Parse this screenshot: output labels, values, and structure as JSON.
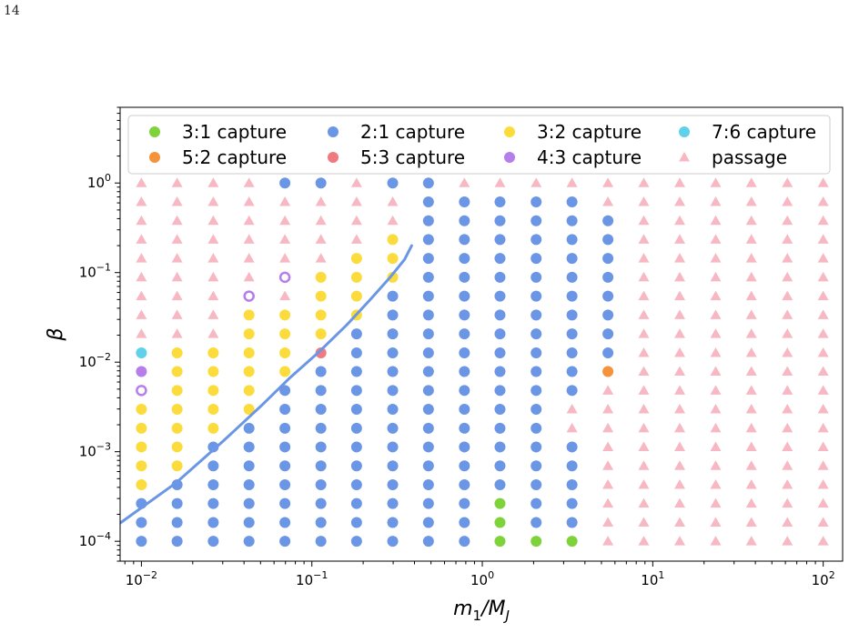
{
  "page_number": "14",
  "chart_data": {
    "type": "scatter",
    "xlabel": "m_1/M_J",
    "ylabel": "β",
    "xscale": "log",
    "yscale": "log",
    "xlim": [
      0.0075,
      130
    ],
    "ylim": [
      6e-05,
      7
    ],
    "xticks": [
      {
        "value": 0.01,
        "base": "10",
        "exp": "−2"
      },
      {
        "value": 0.1,
        "base": "10",
        "exp": "−1"
      },
      {
        "value": 1,
        "base": "10",
        "exp": "0"
      },
      {
        "value": 10,
        "base": "10",
        "exp": "1"
      },
      {
        "value": 100,
        "base": "10",
        "exp": "2"
      }
    ],
    "yticks": [
      {
        "value": 0.0001,
        "base": "10",
        "exp": "−4"
      },
      {
        "value": 0.001,
        "base": "10",
        "exp": "−3"
      },
      {
        "value": 0.01,
        "base": "10",
        "exp": "−2"
      },
      {
        "value": 0.1,
        "base": "10",
        "exp": "−1"
      },
      {
        "value": 1,
        "base": "10",
        "exp": "0"
      }
    ],
    "grid": false,
    "legend_position": "top",
    "series": [
      {
        "key": "c31",
        "name": "3:1 capture",
        "color": "#7ed33b",
        "marker": "circle"
      },
      {
        "key": "c52",
        "name": "5:2 capture",
        "color": "#f5923a",
        "marker": "circle"
      },
      {
        "key": "c21",
        "name": "2:1 capture",
        "color": "#6b96e6",
        "marker": "circle"
      },
      {
        "key": "c53",
        "name": "5:3 capture",
        "color": "#ef7a7f",
        "marker": "circle"
      },
      {
        "key": "c32",
        "name": "3:2 capture",
        "color": "#fbdc3c",
        "marker": "circle"
      },
      {
        "key": "c43",
        "name": "4:3 capture",
        "color": "#b57eeb",
        "marker": "circle"
      },
      {
        "key": "c76",
        "name": "7:6 capture",
        "color": "#5fd1ea",
        "marker": "circle"
      },
      {
        "key": "pass",
        "name": "passage",
        "color": "#f7b8c3",
        "marker": "triangle"
      }
    ],
    "grid_points": {
      "x": [
        0.01,
        0.0162,
        0.0264,
        0.0428,
        0.0695,
        0.113,
        0.183,
        0.298,
        0.483,
        0.785,
        1.27,
        2.07,
        3.36,
        5.46,
        8.86,
        14.4,
        23.4,
        37.9,
        61.6,
        100
      ],
      "y": [
        0.0001,
        0.000162,
        0.000264,
        0.000428,
        0.000695,
        0.00113,
        0.00183,
        0.00298,
        0.00483,
        0.00785,
        0.0127,
        0.0207,
        0.0336,
        0.0546,
        0.0886,
        0.144,
        0.234,
        0.379,
        0.616,
        1.0
      ],
      "legend_codes": {
        "P": "passage",
        "B": "2:1 capture",
        "Y": "3:2 capture",
        "G": "3:1 capture",
        "O": "5:2 capture",
        "R": "5:3 capture",
        "U": "4:3 capture",
        "C": "7:6 capture",
        "u": "4:3 capture (open)",
        "y": "3:2 capture (open)",
        "b": "2:1 capture (open)"
      },
      "rows_bottom_to_top": [
        "BBBBBBBBBBGGGPPPPPPP",
        "BBBBBBBBBBGBBPPPPPPP",
        "BBBBBBBBBBGBBPPPPPPP",
        "YBBBBBBBBBBBBPPPPPPP",
        "YYBBBBBBBBBBBPPPPPPP",
        "YYBBBBBBBBBBBPPPPPPP",
        "YYYBBBBBBBBBPPPPPPPP",
        "YYYYBBBBBBBBPPPPPPPP",
        "uYYYBBBBBBBBBPPPPPPP",
        "UYYYYBBBBBBBBOPPPPPP",
        "CYYYYRBBBBBBBBPPPPPP",
        "PPPYYYBBBBBBBBPPPPPP",
        "PPPYYYYBBBBBBBPPPPPP",
        "PPPuPYYBBBBBBBPPPPPP",
        "PPPPbYYYBBBBBBPPPPPP",
        "PPPPPPYYBBBBBBPPPPPP",
        "PPPPPPPYBBBBBBPPPPPP",
        "PPPPPPPPBBBBBBPPPPPP",
        "PPPPPPPPBBBBBPPPPPPP",
        "PPPPBBPBBPPPPPPPPPPP"
      ]
    },
    "boundary_curve": {
      "color": "#6b96e6",
      "points": [
        [
          0.0075,
          0.00016
        ],
        [
          0.016,
          0.00045
        ],
        [
          0.03,
          0.0013
        ],
        [
          0.05,
          0.0032
        ],
        [
          0.075,
          0.0068
        ],
        [
          0.11,
          0.013
        ],
        [
          0.16,
          0.026
        ],
        [
          0.22,
          0.05
        ],
        [
          0.29,
          0.09
        ],
        [
          0.35,
          0.14
        ],
        [
          0.385,
          0.2
        ]
      ]
    }
  }
}
